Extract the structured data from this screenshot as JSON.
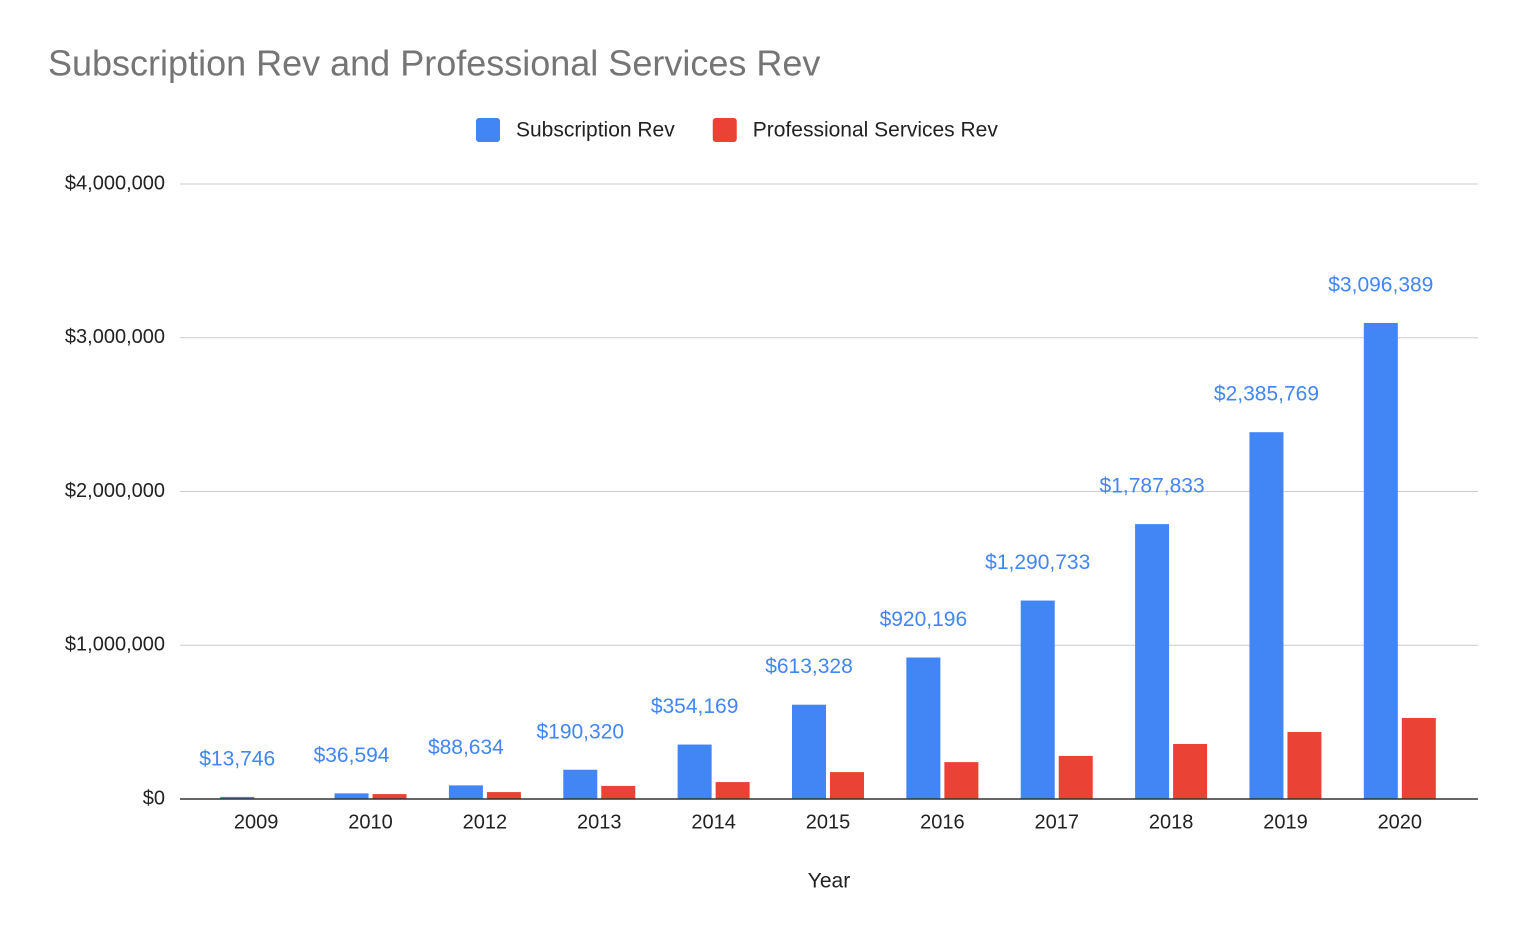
{
  "chart_data": {
    "type": "bar",
    "title": "Subscription Rev and Professional Services Rev",
    "x_label": "Year",
    "categories": [
      "2009",
      "2010",
      "2012",
      "2013",
      "2014",
      "2015",
      "2016",
      "2017",
      "2018",
      "2019",
      "2020"
    ],
    "series": [
      {
        "name": "Subscription Rev",
        "color": "#4285f4",
        "values": [
          13746,
          36594,
          88634,
          190320,
          354169,
          613328,
          920196,
          1290733,
          1787833,
          2385769,
          3096389
        ],
        "value_labels": [
          "$13,746",
          "$36,594",
          "$88,634",
          "$190,320",
          "$354,169",
          "$613,328",
          "$920,196",
          "$1,290,733",
          "$1,787,833",
          "$2,385,769",
          "$3,096,389"
        ]
      },
      {
        "name": "Professional Services Rev",
        "color": "#ea4335",
        "values": [
          0,
          32000,
          45000,
          85000,
          110000,
          175000,
          240000,
          280000,
          358000,
          436000,
          527000
        ]
      }
    ],
    "ylim": [
      0,
      4000000
    ],
    "yticks": [
      {
        "value": 0,
        "label": "$0"
      },
      {
        "value": 1000000,
        "label": "$1,000,000"
      },
      {
        "value": 2000000,
        "label": "$2,000,000"
      },
      {
        "value": 3000000,
        "label": "$3,000,000"
      },
      {
        "value": 4000000,
        "label": "$4,000,000"
      }
    ],
    "grid": true,
    "legend": "top"
  }
}
